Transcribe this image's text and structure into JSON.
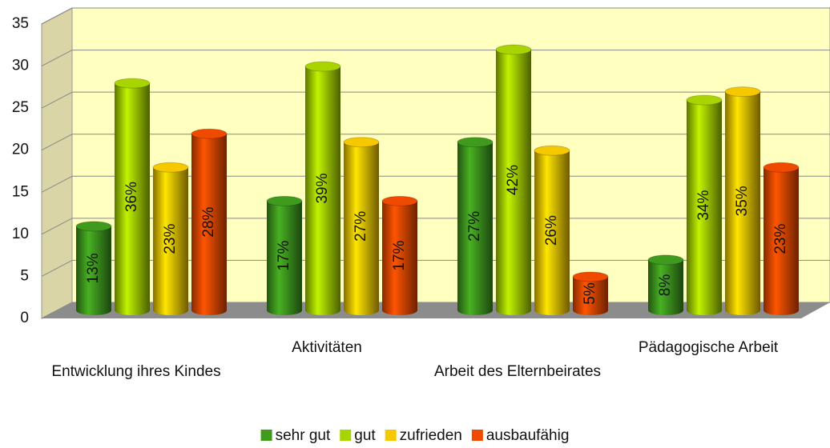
{
  "chart_data": {
    "type": "bar3d",
    "categories": [
      "Entwicklung ihres Kindes",
      "Aktivitäten",
      "Arbeit des Elternbeirates",
      "Pädagogische Arbeit"
    ],
    "series": [
      {
        "name": "sehr gut",
        "color": "#3f9a1e",
        "values": [
          10,
          13,
          20,
          6
        ],
        "value_labels": [
          "13%",
          "17%",
          "27%",
          "8%"
        ]
      },
      {
        "name": "gut",
        "color": "#a8d400",
        "values": [
          27,
          29,
          31,
          25
        ],
        "value_labels": [
          "36%",
          "39%",
          "42%",
          "34%"
        ]
      },
      {
        "name": "zufrieden",
        "color": "#f5c800",
        "values": [
          17,
          20,
          19,
          26
        ],
        "value_labels": [
          "23%",
          "27%",
          "26%",
          "35%"
        ]
      },
      {
        "name": "ausbaufähig",
        "color": "#f04a00",
        "values": [
          21,
          13,
          4,
          17
        ],
        "value_labels": [
          "28%",
          "17%",
          "5%",
          "23%"
        ]
      }
    ],
    "ylim": [
      0,
      35
    ],
    "yticks": [
      0,
      5,
      10,
      15,
      20,
      25,
      30,
      35
    ],
    "grid": true,
    "legend": "bottom"
  }
}
